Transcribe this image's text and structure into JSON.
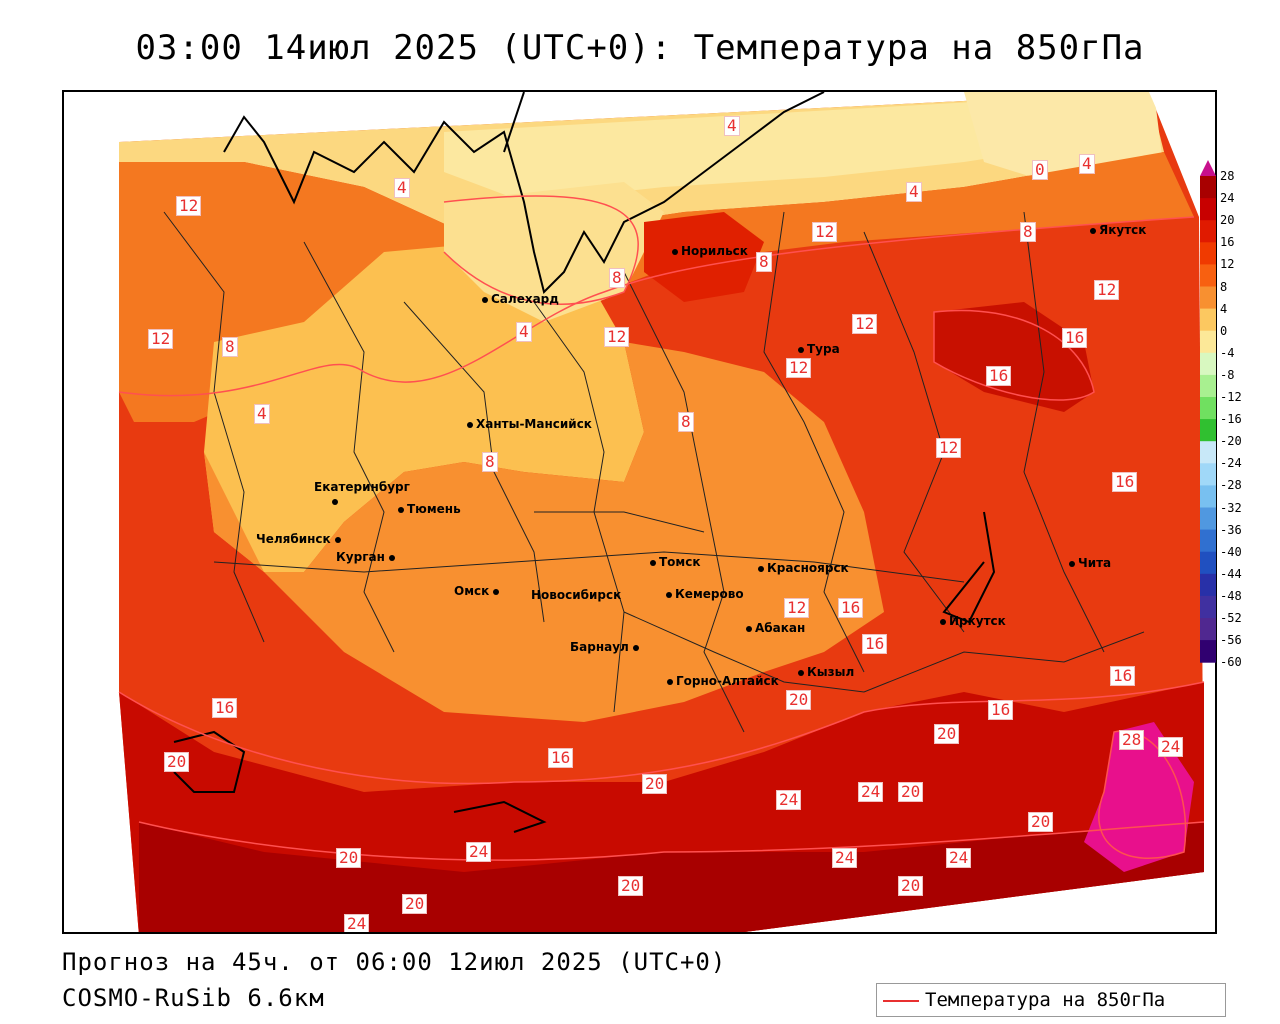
{
  "title": "03:00 14июл 2025 (UTC+0): Температура на 850гПа",
  "footer": {
    "forecast": "Прогноз на 45ч. от 06:00 12июл 2025 (UTC+0)",
    "model": "COSMO-RuSib 6.6км"
  },
  "legend": {
    "label": "Температура на 850гПа",
    "line_color": "#e83030"
  },
  "colorbar": {
    "labels": [
      "28",
      "24",
      "20",
      "16",
      "12",
      "8",
      "4",
      "0",
      "-4",
      "-8",
      "-12",
      "-16",
      "-20",
      "-24",
      "-28",
      "-32",
      "-36",
      "-40",
      "-44",
      "-48",
      "-52",
      "-56",
      "-60"
    ],
    "colors": [
      "#a80000",
      "#c80000",
      "#e01a00",
      "#f03a00",
      "#f86010",
      "#f89030",
      "#fcc860",
      "#fce898",
      "#d8f8c0",
      "#a8f090",
      "#70e060",
      "#30c030",
      "#c8e8f8",
      "#a0d8f8",
      "#78c0f0",
      "#5098e0",
      "#3070d0",
      "#2050c0",
      "#2830a8",
      "#4030a0",
      "#502890",
      "#300070"
    ]
  },
  "cities": [
    {
      "name": "Салехард"
    },
    {
      "name": "Норильск"
    },
    {
      "name": "Якутск"
    },
    {
      "name": "Тура"
    },
    {
      "name": "Ханты-Мансийск"
    },
    {
      "name": "Екатеринбург"
    },
    {
      "name": "Тюмень"
    },
    {
      "name": "Челябинск"
    },
    {
      "name": "Курган"
    },
    {
      "name": "Омск"
    },
    {
      "name": "Новосибирск"
    },
    {
      "name": "Томск"
    },
    {
      "name": "Кемерово"
    },
    {
      "name": "Красноярск"
    },
    {
      "name": "Барнаул"
    },
    {
      "name": "Абакан"
    },
    {
      "name": "Горно-Алтайск"
    },
    {
      "name": "Кызыл"
    },
    {
      "name": "Иркутск"
    },
    {
      "name": "Чита"
    }
  ],
  "isotherm_labels": [
    "4",
    "4",
    "4",
    "0",
    "4",
    "4",
    "12",
    "8",
    "8",
    "12",
    "12",
    "12",
    "8",
    "12",
    "12",
    "16",
    "4",
    "8",
    "8",
    "12",
    "8",
    "16",
    "12",
    "16",
    "12",
    "16",
    "16",
    "16",
    "16",
    "20",
    "20",
    "24",
    "28",
    "24",
    "20",
    "20",
    "24",
    "20",
    "20",
    "24",
    "20",
    "24",
    "24",
    "20",
    "20",
    "24",
    "16",
    "16",
    "20"
  ]
}
